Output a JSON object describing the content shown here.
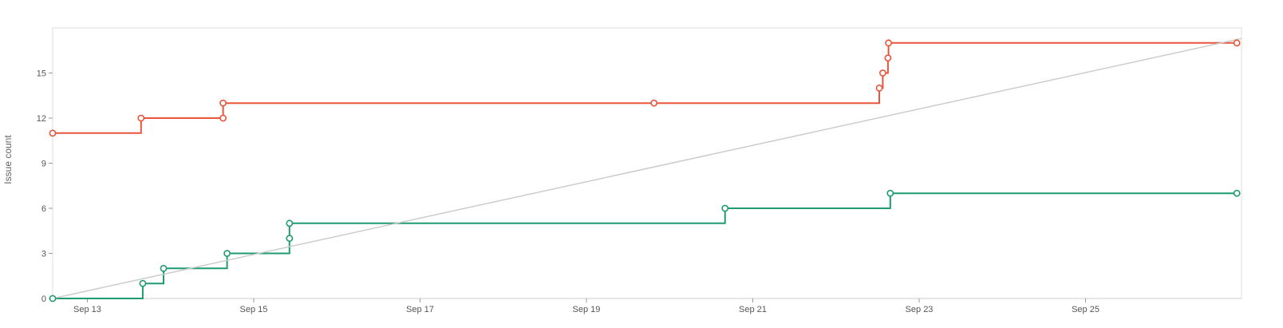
{
  "chart_data": {
    "type": "line",
    "ylabel": "Issue count",
    "xlabel": "",
    "ylim": [
      0,
      18
    ],
    "yticks": [
      0,
      3,
      6,
      9,
      12,
      15
    ],
    "ytick_labels": [
      "0",
      "3",
      "6",
      "9",
      "12",
      "15"
    ],
    "xlim": [
      "2023-09-12 14:00",
      "2023-09-26 21:00"
    ],
    "xticks": [
      "2023-09-13",
      "2023-09-15",
      "2023-09-17",
      "2023-09-19",
      "2023-09-21",
      "2023-09-23",
      "2023-09-25"
    ],
    "xtick_labels": [
      "Sep 13",
      "Sep 15",
      "Sep 17",
      "Sep 19",
      "Sep 21",
      "Sep 23",
      "Sep 25"
    ],
    "grid": false,
    "series": [
      {
        "color": "#e8553a",
        "step": true,
        "points": [
          [
            "2023-09-12 14:00",
            11
          ],
          [
            "2023-09-13 15:30",
            12
          ],
          [
            "2023-09-14 15:10",
            12
          ],
          [
            "2023-09-14 15:10",
            13
          ],
          [
            "2023-09-19 19:30",
            13
          ],
          [
            "2023-09-22 12:30",
            14
          ],
          [
            "2023-09-22 13:30",
            15
          ],
          [
            "2023-09-22 15:00",
            16
          ],
          [
            "2023-09-22 15:10",
            17
          ],
          [
            "2023-09-26 19:40",
            17
          ]
        ]
      },
      {
        "color": "#1f9a73",
        "step": true,
        "points": [
          [
            "2023-09-12 14:00",
            0
          ],
          [
            "2023-09-13 16:00",
            1
          ],
          [
            "2023-09-13 22:00",
            2
          ],
          [
            "2023-09-14 16:20",
            3
          ],
          [
            "2023-09-15 10:20",
            4
          ],
          [
            "2023-09-15 10:20",
            5
          ],
          [
            "2023-09-20 16:00",
            6
          ],
          [
            "2023-09-22 15:40",
            7
          ],
          [
            "2023-09-26 19:40",
            7
          ]
        ]
      },
      {
        "color": "#cccccc",
        "step": false,
        "points": [
          [
            "2023-09-12 14:00",
            0
          ],
          [
            "2023-09-26 21:00",
            17.3
          ]
        ]
      }
    ]
  }
}
